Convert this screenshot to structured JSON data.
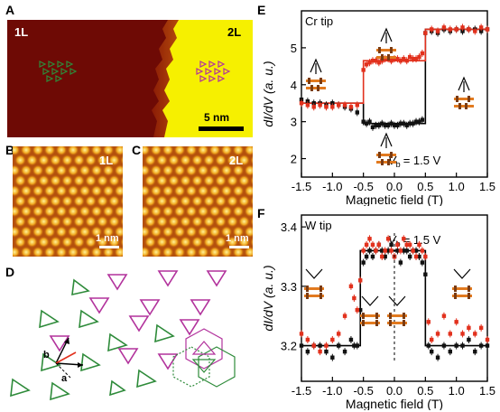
{
  "figure": {
    "panel_labels": {
      "A": "A",
      "B": "B",
      "C": "C",
      "D": "D",
      "E": "E",
      "F": "F"
    },
    "panel_a": {
      "left_label": "1L",
      "right_label": "2L",
      "scalebar_text": "5 nm"
    },
    "panel_b": {
      "label": "1L",
      "scalebar_text": "1 nm"
    },
    "panel_c": {
      "label": "2L",
      "scalebar_text": "1 nm"
    },
    "panel_d": {
      "vec_a": "a",
      "vec_b": "b"
    },
    "colors": {
      "substrate_1L": "#6e0a05",
      "substrate_2L": "#f6f000",
      "green": "#2e8b3a",
      "magenta": "#b2329c",
      "data_black": "#000000",
      "data_red": "#e2311d"
    }
  },
  "chart_data": [
    {
      "type": "scatter",
      "panel": "E",
      "annotation_tip": "Cr tip",
      "annotation_vb": "V",
      "annotation_vb_sub": "b",
      "annotation_vb_val": "= 1.5 V",
      "ylabel": "dI/dV (a. u.)",
      "xlabel": "Magnetic field (T)",
      "xlim": [
        -1.5,
        1.5
      ],
      "ylim": [
        1.5,
        6
      ],
      "xticks": [
        -1.5,
        -1.0,
        -0.5,
        0.0,
        0.5,
        1.0,
        1.5
      ],
      "xtick_labels": [
        "-1.5",
        "-1.0",
        "-0.5",
        "0.0",
        "0.5",
        "1.0",
        "1.5"
      ],
      "yticks": [
        2,
        3,
        4,
        5
      ],
      "ytick_labels": [
        "2",
        "3",
        "4",
        "5"
      ],
      "series": [
        {
          "color": "black",
          "x": [
            -1.5,
            -1.4,
            -1.3,
            -1.2,
            -1.1,
            -1.0,
            -0.9,
            -0.8,
            -0.7,
            -0.6,
            -0.5,
            -0.45,
            -0.4,
            -0.35,
            -0.3,
            -0.25,
            -0.2,
            -0.15,
            -0.1,
            -0.05,
            0.0,
            0.05,
            0.1,
            0.15,
            0.2,
            0.25,
            0.3,
            0.35,
            0.4,
            0.45,
            0.5,
            0.6,
            0.7,
            0.8,
            0.9,
            1.0,
            1.1,
            1.2,
            1.3,
            1.4,
            1.5
          ],
          "y": [
            3.6,
            3.55,
            3.5,
            3.5,
            3.45,
            3.5,
            3.45,
            3.4,
            3.35,
            3.25,
            3.0,
            2.95,
            3.0,
            2.85,
            2.9,
            2.9,
            2.95,
            2.9,
            2.9,
            2.95,
            2.9,
            2.9,
            2.95,
            2.95,
            2.9,
            2.95,
            2.95,
            3.0,
            3.0,
            3.05,
            5.4,
            5.45,
            5.4,
            5.5,
            5.45,
            5.5,
            5.45,
            5.5,
            5.5,
            5.45,
            5.5
          ]
        },
        {
          "color": "red",
          "x": [
            -1.5,
            -1.4,
            -1.3,
            -1.2,
            -1.1,
            -1.0,
            -0.9,
            -0.8,
            -0.7,
            -0.6,
            -0.5,
            -0.45,
            -0.4,
            -0.35,
            -0.3,
            -0.25,
            -0.2,
            -0.15,
            -0.1,
            -0.05,
            0.0,
            0.05,
            0.1,
            0.15,
            0.2,
            0.25,
            0.3,
            0.35,
            0.4,
            0.45,
            0.5,
            0.6,
            0.7,
            0.8,
            0.9,
            1.0,
            1.1,
            1.2,
            1.3,
            1.4,
            1.5
          ],
          "y": [
            3.5,
            3.45,
            3.4,
            3.45,
            3.4,
            3.4,
            3.45,
            3.45,
            3.4,
            3.45,
            4.4,
            4.55,
            4.6,
            4.65,
            4.65,
            4.6,
            4.65,
            4.7,
            4.7,
            4.65,
            4.7,
            4.7,
            4.65,
            4.7,
            4.65,
            4.75,
            4.7,
            4.7,
            4.75,
            4.85,
            5.4,
            5.5,
            5.45,
            5.55,
            5.5,
            5.5,
            5.55,
            5.5,
            5.45,
            5.55,
            5.5
          ]
        }
      ],
      "model_lines": [
        {
          "color": "black",
          "x": [
            -1.5,
            -0.5,
            -0.5,
            0.5,
            0.5,
            1.5
          ],
          "y": [
            3.5,
            3.5,
            2.95,
            2.95,
            5.5,
            5.5
          ]
        },
        {
          "color": "red",
          "x": [
            -1.5,
            -0.5,
            -0.5,
            0.5,
            0.5,
            1.5
          ],
          "y": [
            3.5,
            3.5,
            4.65,
            4.65,
            5.5,
            5.5
          ]
        }
      ]
    },
    {
      "type": "scatter",
      "panel": "F",
      "annotation_tip": "W tip",
      "annotation_vb": "V",
      "annotation_vb_sub": "b",
      "annotation_vb_val": "= 1.5 V",
      "ylabel": "dI/dV (a. u.)",
      "xlabel": "Magnetic field (T)",
      "xlim": [
        -1.5,
        1.5
      ],
      "ylim": [
        3.14,
        3.42
      ],
      "xticks": [
        -1.5,
        -1.0,
        -0.5,
        0.0,
        0.5,
        1.0,
        1.5
      ],
      "xtick_labels": [
        "-1.5",
        "-1.0",
        "-0.5",
        "0.0",
        "0.5",
        "1.0",
        "1.5"
      ],
      "yticks": [
        3.2,
        3.3,
        3.4
      ],
      "ytick_labels": [
        "3.2",
        "3.3",
        "3.4"
      ],
      "series": [
        {
          "color": "black",
          "x": [
            -1.5,
            -1.4,
            -1.3,
            -1.2,
            -1.1,
            -1.0,
            -0.9,
            -0.8,
            -0.7,
            -0.65,
            -0.6,
            -0.55,
            -0.5,
            -0.45,
            -0.4,
            -0.35,
            -0.3,
            -0.25,
            -0.2,
            -0.15,
            -0.1,
            -0.05,
            0.0,
            0.05,
            0.1,
            0.15,
            0.2,
            0.25,
            0.3,
            0.35,
            0.4,
            0.45,
            0.5,
            0.55,
            0.6,
            0.7,
            0.8,
            0.9,
            1.0,
            1.1,
            1.2,
            1.3,
            1.4,
            1.5
          ],
          "y": [
            3.2,
            3.19,
            3.2,
            3.2,
            3.19,
            3.18,
            3.2,
            3.19,
            3.21,
            3.2,
            3.2,
            3.26,
            3.34,
            3.35,
            3.36,
            3.35,
            3.36,
            3.37,
            3.36,
            3.35,
            3.36,
            3.37,
            3.35,
            3.36,
            3.34,
            3.36,
            3.36,
            3.35,
            3.36,
            3.36,
            3.35,
            3.34,
            3.32,
            3.2,
            3.19,
            3.18,
            3.2,
            3.19,
            3.2,
            3.2,
            3.21,
            3.19,
            3.2,
            3.2
          ]
        },
        {
          "color": "red",
          "x": [
            -1.5,
            -1.4,
            -1.3,
            -1.2,
            -1.1,
            -1.0,
            -0.9,
            -0.8,
            -0.7,
            -0.65,
            -0.6,
            -0.55,
            -0.5,
            -0.45,
            -0.4,
            -0.35,
            -0.3,
            -0.25,
            -0.2,
            -0.15,
            -0.1,
            -0.05,
            0.0,
            0.05,
            0.1,
            0.15,
            0.2,
            0.25,
            0.3,
            0.35,
            0.4,
            0.45,
            0.5,
            0.55,
            0.6,
            0.7,
            0.8,
            0.9,
            1.0,
            1.1,
            1.2,
            1.3,
            1.4,
            1.5
          ],
          "y": [
            3.22,
            3.21,
            3.2,
            3.19,
            3.2,
            3.21,
            3.22,
            3.25,
            3.3,
            3.28,
            3.26,
            3.31,
            3.36,
            3.37,
            3.38,
            3.37,
            3.36,
            3.37,
            3.35,
            3.36,
            3.38,
            3.36,
            3.35,
            3.37,
            3.36,
            3.38,
            3.37,
            3.37,
            3.36,
            3.35,
            3.37,
            3.36,
            3.35,
            3.24,
            3.21,
            3.22,
            3.25,
            3.22,
            3.24,
            3.22,
            3.23,
            3.22,
            3.23,
            3.21
          ]
        }
      ],
      "model_lines": [
        {
          "color": "black",
          "x": [
            -1.5,
            -0.55,
            -0.55,
            0.5,
            0.5,
            1.5
          ],
          "y": [
            3.2,
            3.2,
            3.36,
            3.36,
            3.2,
            3.2
          ]
        }
      ]
    }
  ]
}
